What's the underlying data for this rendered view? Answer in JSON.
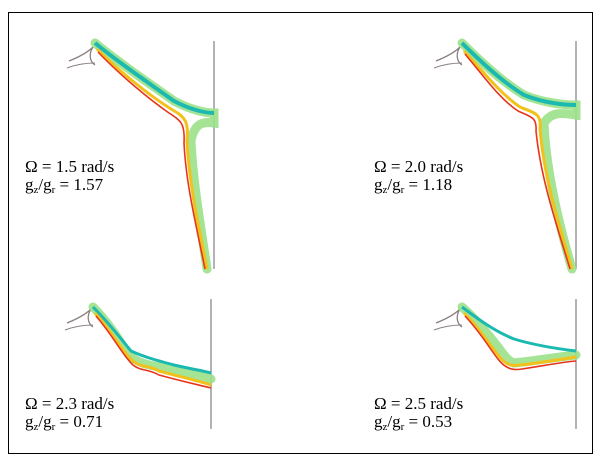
{
  "panels": [
    {
      "omega": "Ω = 1.5 rad/s",
      "ratio_prefix": "g",
      "ratio_sub1": "z",
      "ratio_mid": "/g",
      "ratio_sub2": "r",
      "ratio_value": " = 1.57"
    },
    {
      "omega": "Ω = 2.0 rad/s",
      "ratio_prefix": "g",
      "ratio_sub1": "z",
      "ratio_mid": "/g",
      "ratio_sub2": "r",
      "ratio_value": " = 1.18"
    },
    {
      "omega": "Ω = 2.3 rad/s",
      "ratio_prefix": "g",
      "ratio_sub1": "z",
      "ratio_mid": "/g",
      "ratio_sub2": "r",
      "ratio_value": " = 0.71"
    },
    {
      "omega": "Ω = 2.5 rad/s",
      "ratio_prefix": "g",
      "ratio_sub1": "z",
      "ratio_mid": "/g",
      "ratio_sub2": "r",
      "ratio_value": " = 0.53"
    }
  ],
  "colors": {
    "wall": "#9a9a9a",
    "cup": "#8a7f7f",
    "film_outer": "#e8341c",
    "film_mid": "#f2c21c",
    "film_inner": "#9be08a",
    "film_edge": "#1bb9b0"
  }
}
